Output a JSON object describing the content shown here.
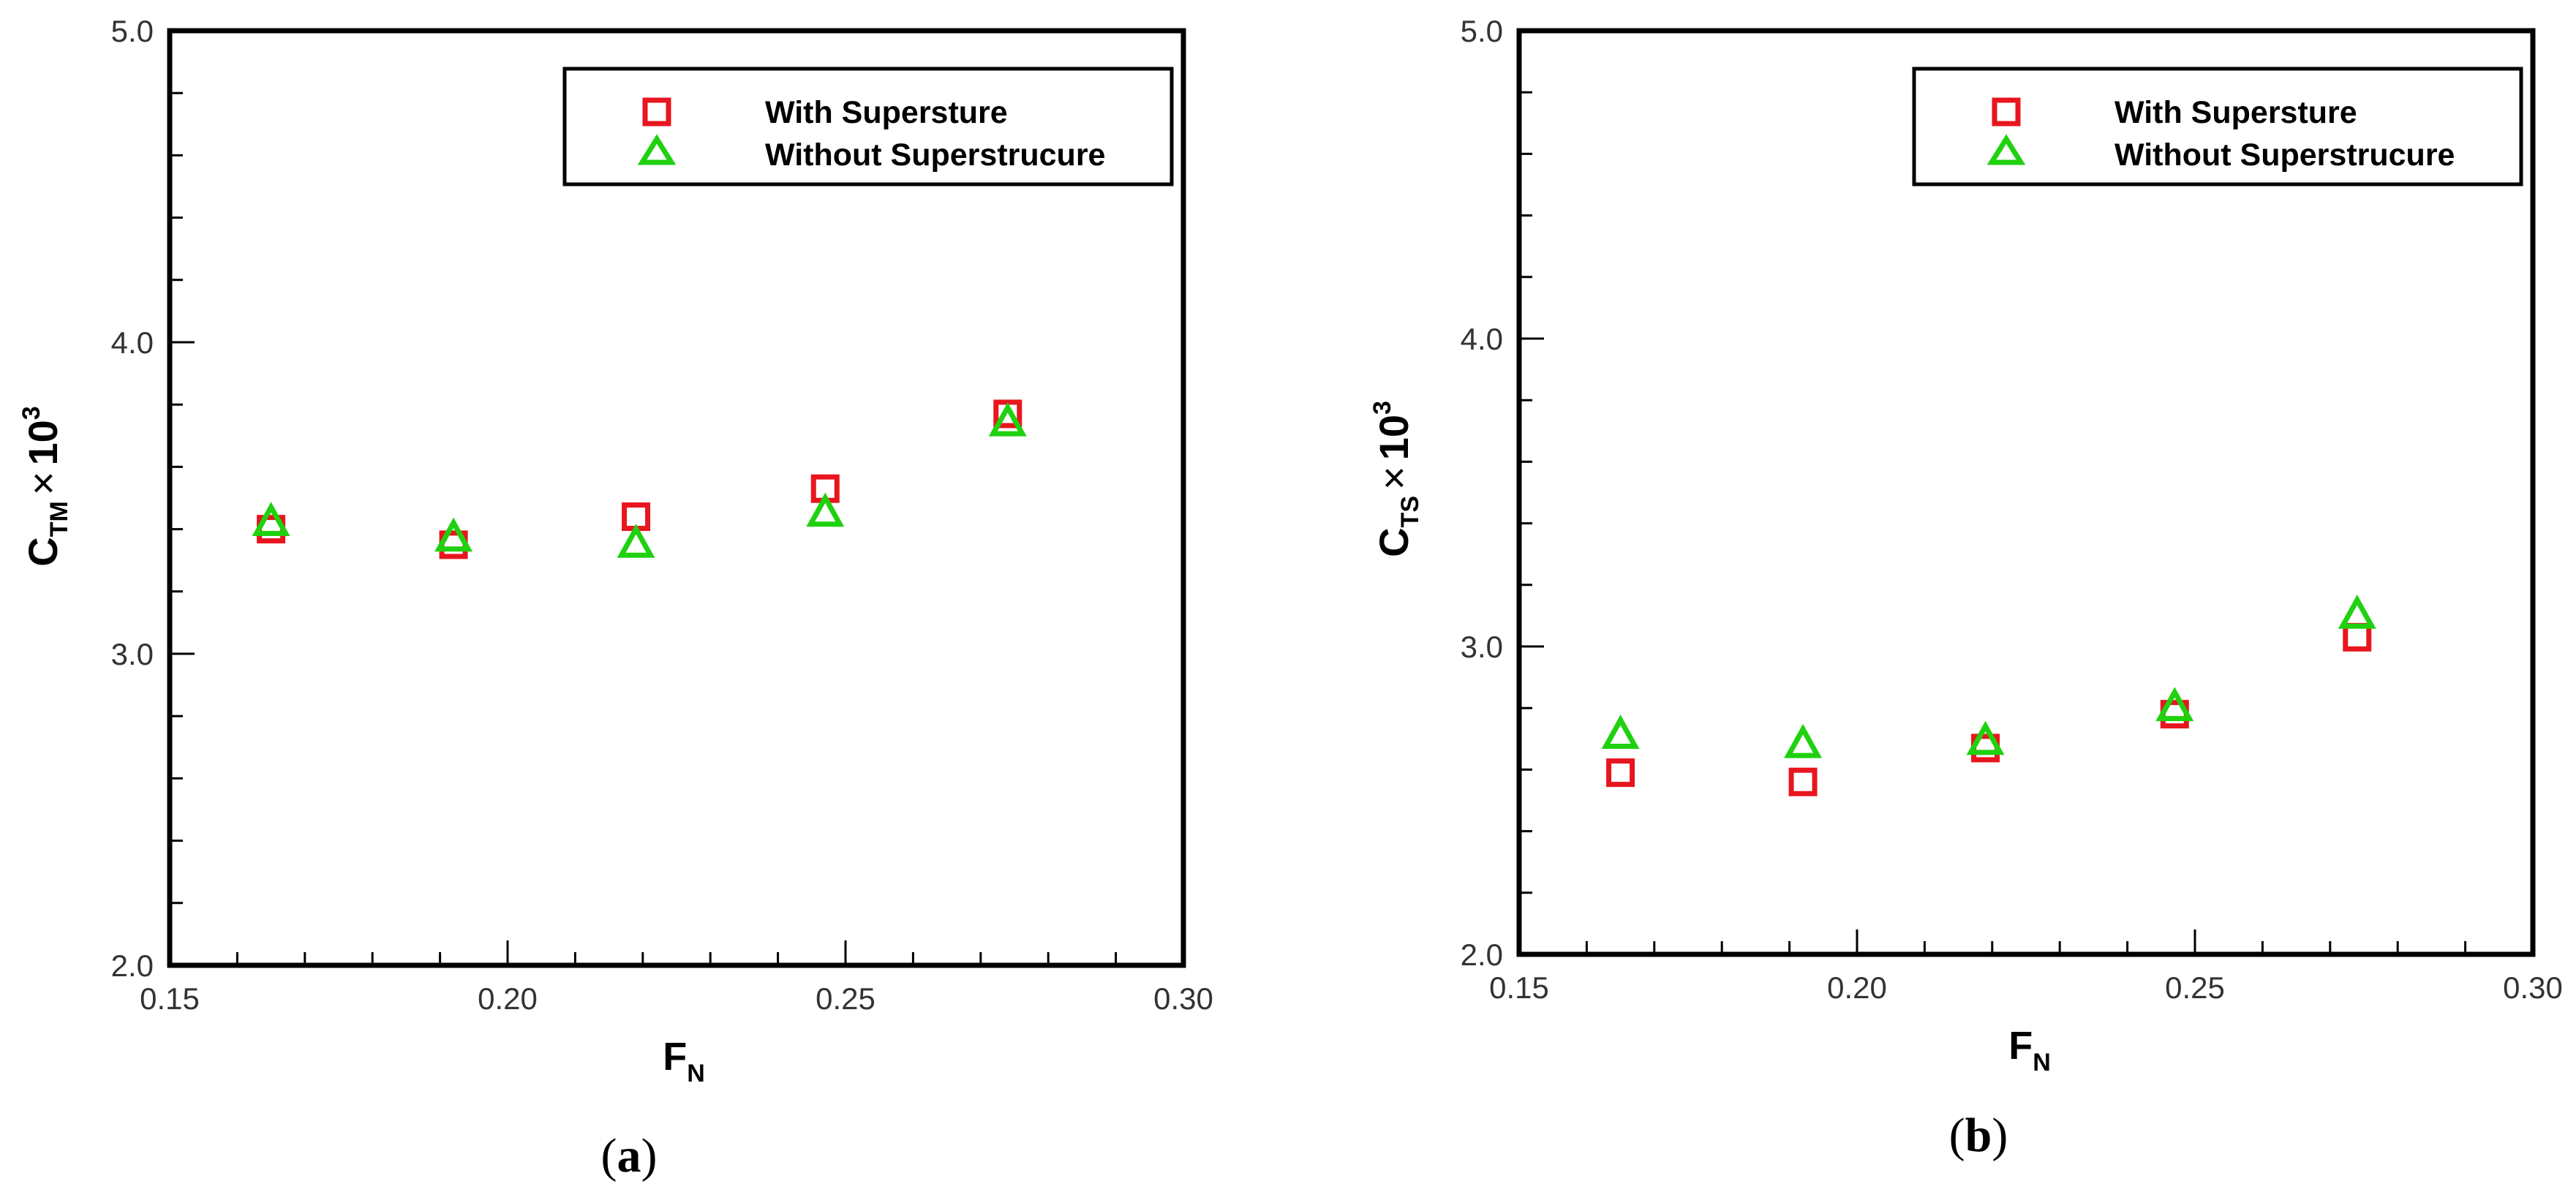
{
  "colors": {
    "with": "#e8161e",
    "without": "#1fd10f"
  },
  "panels": [
    {
      "caption": {
        "open": "(",
        "letter": "a",
        "close": ")"
      },
      "ylabel": {
        "c": "C",
        "sub": "TM",
        "times": "×",
        "ten": "10",
        "exp": "3"
      },
      "xlabel": {
        "f": "F",
        "sub": "N"
      },
      "legend": [
        "With Supersture",
        "Without Superstrucure"
      ]
    },
    {
      "caption": {
        "open": "(",
        "letter": "b",
        "close": ")"
      },
      "ylabel": {
        "c": "C",
        "sub": "TS",
        "times": "×",
        "ten": "10",
        "exp": "3"
      },
      "xlabel": {
        "f": "F",
        "sub": "N"
      },
      "legend": [
        "With Supersture",
        "Without Superstrucure"
      ]
    }
  ],
  "chart_data": [
    {
      "type": "scatter",
      "xlim": [
        0.15,
        0.3
      ],
      "ylim": [
        2.0,
        5.0
      ],
      "xticks": [
        "0.15",
        "0.20",
        "0.25",
        "0.30"
      ],
      "yticks": [
        "2.0",
        "3.0",
        "4.0",
        "5.0"
      ],
      "xlabel": "F_N",
      "ylabel": "C_TM × 10^3",
      "legend_position": "top-right",
      "series": [
        {
          "name": "With Supersture",
          "marker": "square",
          "x": [
            0.165,
            0.192,
            0.219,
            0.247,
            0.274
          ],
          "y": [
            3.4,
            3.35,
            3.44,
            3.53,
            3.77
          ]
        },
        {
          "name": "Without Superstrucure",
          "marker": "triangle",
          "x": [
            0.165,
            0.192,
            0.219,
            0.247,
            0.274
          ],
          "y": [
            3.42,
            3.37,
            3.35,
            3.45,
            3.74
          ]
        }
      ]
    },
    {
      "type": "scatter",
      "xlim": [
        0.15,
        0.3
      ],
      "ylim": [
        2.0,
        5.0
      ],
      "xticks": [
        "0.15",
        "0.20",
        "0.25",
        "0.30"
      ],
      "yticks": [
        "2.0",
        "3.0",
        "4.0",
        "5.0"
      ],
      "xlabel": "F_N",
      "ylabel": "C_TS × 10^3",
      "legend_position": "top-right",
      "series": [
        {
          "name": "With Supersture",
          "marker": "square",
          "x": [
            0.165,
            0.192,
            0.219,
            0.247,
            0.274
          ],
          "y": [
            2.59,
            2.56,
            2.67,
            2.78,
            3.03
          ]
        },
        {
          "name": "Without Superstrucure",
          "marker": "triangle",
          "x": [
            0.165,
            0.192,
            0.219,
            0.247,
            0.274
          ],
          "y": [
            2.71,
            2.68,
            2.69,
            2.8,
            3.1
          ]
        }
      ]
    }
  ]
}
